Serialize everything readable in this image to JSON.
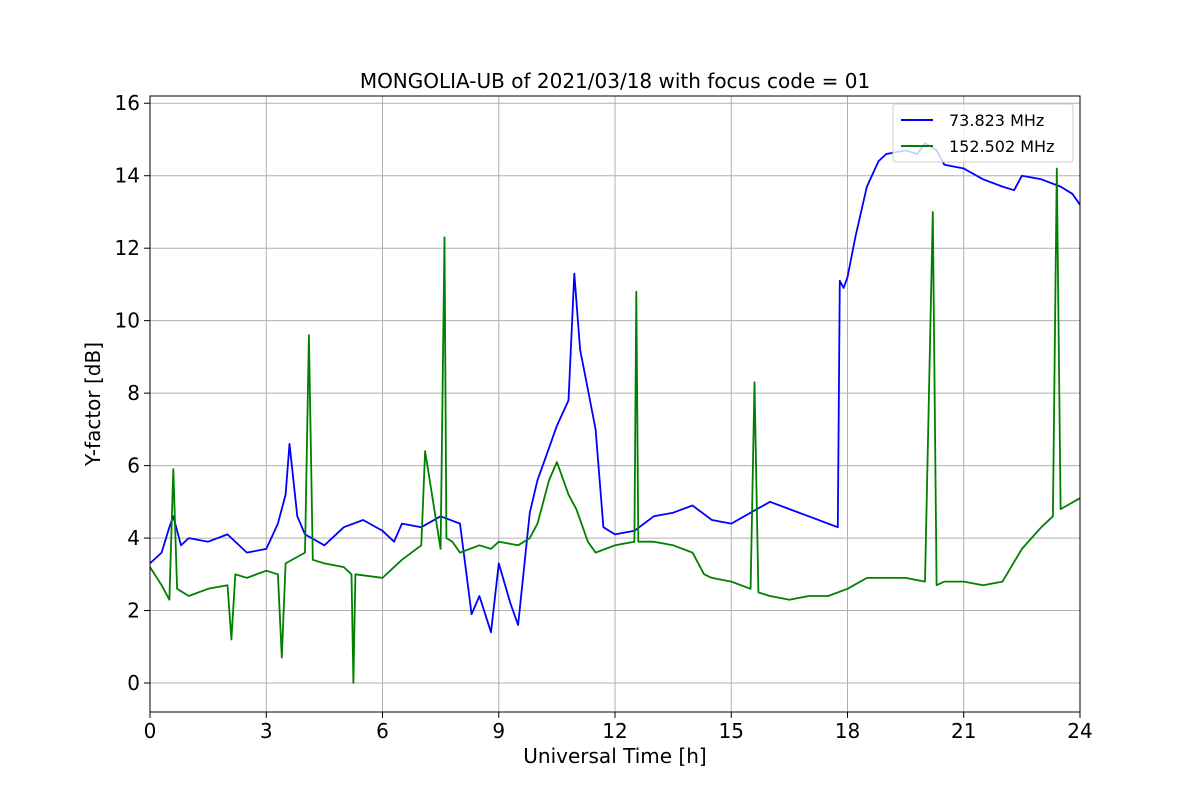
{
  "chart_data": {
    "type": "line",
    "title": "MONGOLIA-UB of 2021/03/18 with focus code = 01",
    "xlabel": "Universal Time [h]",
    "ylabel": "Y-factor [dB]",
    "xlim": [
      0,
      24
    ],
    "ylim": [
      -0.8,
      16.2
    ],
    "xticks": [
      0,
      3,
      6,
      9,
      12,
      15,
      18,
      21,
      24
    ],
    "yticks": [
      0,
      2,
      4,
      6,
      8,
      10,
      12,
      14,
      16
    ],
    "grid": true,
    "legend_position": "top-right",
    "series": [
      {
        "name": "73.823 MHz",
        "color": "#0000ff",
        "x": [
          0.0,
          0.3,
          0.5,
          0.6,
          0.8,
          1.0,
          1.5,
          2.0,
          2.5,
          3.0,
          3.3,
          3.5,
          3.6,
          3.8,
          4.0,
          4.5,
          5.0,
          5.5,
          6.0,
          6.3,
          6.5,
          7.0,
          7.5,
          8.0,
          8.3,
          8.5,
          8.8,
          9.0,
          9.3,
          9.5,
          9.8,
          10.0,
          10.2,
          10.5,
          10.8,
          10.95,
          11.1,
          11.3,
          11.5,
          11.7,
          12.0,
          12.5,
          13.0,
          13.5,
          14.0,
          14.5,
          15.0,
          15.5,
          16.0,
          16.5,
          17.0,
          17.5,
          17.75,
          17.8,
          17.9,
          18.0,
          18.2,
          18.5,
          18.8,
          19.0,
          19.5,
          19.8,
          20.0,
          20.3,
          20.5,
          21.0,
          21.5,
          22.0,
          22.3,
          22.5,
          23.0,
          23.5,
          23.8,
          24.0
        ],
        "y": [
          3.3,
          3.6,
          4.3,
          4.6,
          3.8,
          4.0,
          3.9,
          4.1,
          3.6,
          3.7,
          4.4,
          5.2,
          6.6,
          4.6,
          4.1,
          3.8,
          4.3,
          4.5,
          4.2,
          3.9,
          4.4,
          4.3,
          4.6,
          4.4,
          1.9,
          2.4,
          1.4,
          3.3,
          2.2,
          1.6,
          4.7,
          5.6,
          6.2,
          7.1,
          7.8,
          11.3,
          9.2,
          8.1,
          7.0,
          4.3,
          4.1,
          4.2,
          4.6,
          4.7,
          4.9,
          4.5,
          4.4,
          4.7,
          5.0,
          4.8,
          4.6,
          4.4,
          4.3,
          11.1,
          10.9,
          11.2,
          12.3,
          13.7,
          14.4,
          14.6,
          14.7,
          14.6,
          14.9,
          14.7,
          14.3,
          14.2,
          13.9,
          13.7,
          13.6,
          14.0,
          13.9,
          13.7,
          13.5,
          13.2
        ]
      },
      {
        "name": "152.502 MHz",
        "color": "#008000",
        "x": [
          0.0,
          0.3,
          0.5,
          0.6,
          0.7,
          1.0,
          1.5,
          2.0,
          2.1,
          2.2,
          2.5,
          3.0,
          3.3,
          3.4,
          3.5,
          4.0,
          4.1,
          4.2,
          4.5,
          5.0,
          5.2,
          5.25,
          5.3,
          6.0,
          6.5,
          7.0,
          7.1,
          7.5,
          7.6,
          7.65,
          7.8,
          8.0,
          8.5,
          8.8,
          9.0,
          9.5,
          9.8,
          10.0,
          10.3,
          10.5,
          10.8,
          11.0,
          11.3,
          11.5,
          12.0,
          12.5,
          12.55,
          12.6,
          13.0,
          13.5,
          14.0,
          14.3,
          14.5,
          15.0,
          15.5,
          15.6,
          15.7,
          16.0,
          16.5,
          17.0,
          17.5,
          18.0,
          18.5,
          19.0,
          19.5,
          20.0,
          20.2,
          20.3,
          20.5,
          21.0,
          21.5,
          22.0,
          22.5,
          23.0,
          23.3,
          23.4,
          23.5,
          24.0
        ],
        "y": [
          3.2,
          2.7,
          2.3,
          5.9,
          2.6,
          2.4,
          2.6,
          2.7,
          1.2,
          3.0,
          2.9,
          3.1,
          3.0,
          0.7,
          3.3,
          3.6,
          9.6,
          3.4,
          3.3,
          3.2,
          3.0,
          0.0,
          3.0,
          2.9,
          3.4,
          3.8,
          6.4,
          3.7,
          12.3,
          4.0,
          3.9,
          3.6,
          3.8,
          3.7,
          3.9,
          3.8,
          4.0,
          4.4,
          5.6,
          6.1,
          5.2,
          4.8,
          3.9,
          3.6,
          3.8,
          3.9,
          10.8,
          3.9,
          3.9,
          3.8,
          3.6,
          3.0,
          2.9,
          2.8,
          2.6,
          8.3,
          2.5,
          2.4,
          2.3,
          2.4,
          2.4,
          2.6,
          2.9,
          2.9,
          2.9,
          2.8,
          13.0,
          2.7,
          2.8,
          2.8,
          2.7,
          2.8,
          3.7,
          4.3,
          4.6,
          14.2,
          4.8,
          5.1
        ]
      }
    ]
  }
}
